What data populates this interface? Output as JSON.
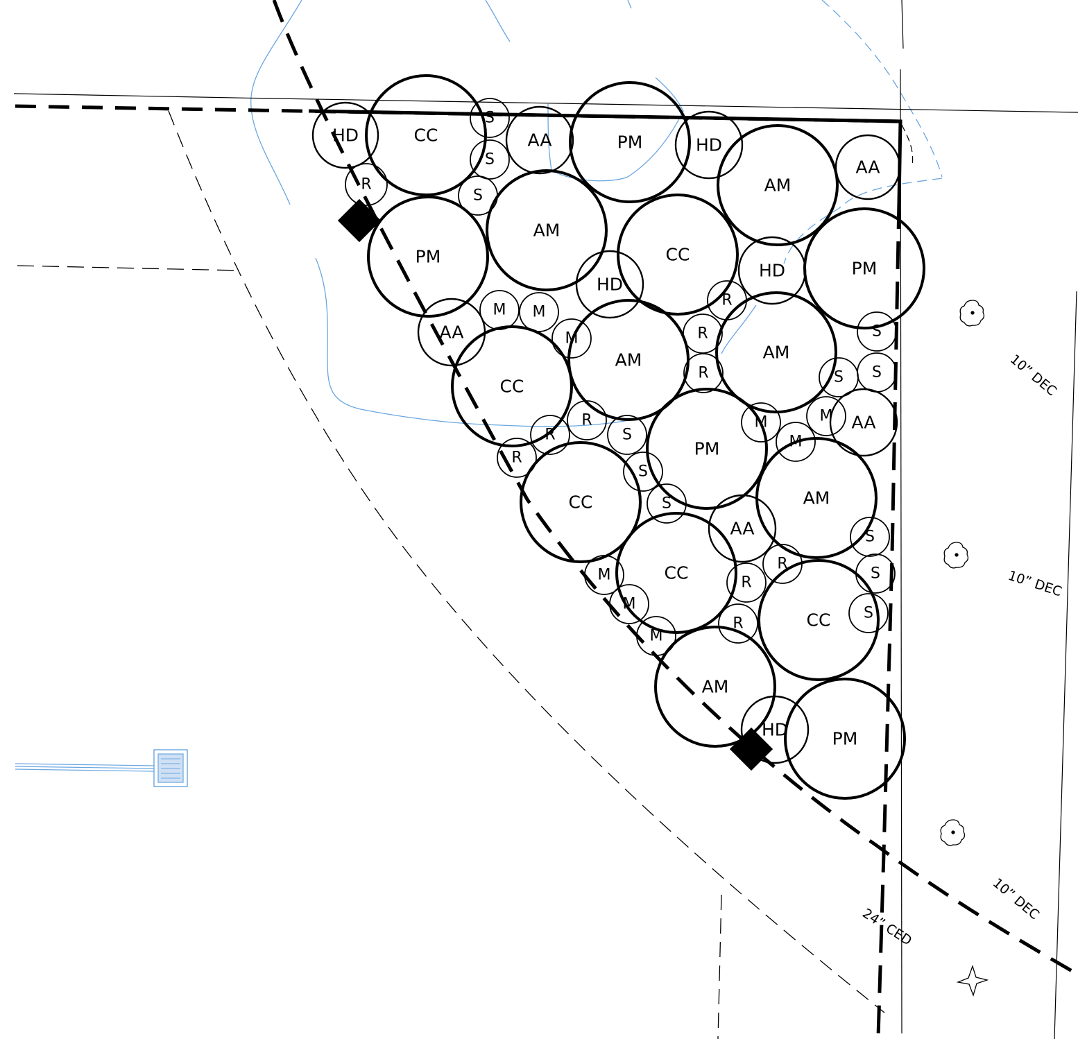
{
  "plan": {
    "plants": [
      {
        "code": "HD"
      },
      {
        "code": "CC"
      },
      {
        "code": "S"
      },
      {
        "code": "AA"
      },
      {
        "code": "PM"
      },
      {
        "code": "HD"
      },
      {
        "code": "AM"
      },
      {
        "code": "AA"
      },
      {
        "code": "R"
      },
      {
        "code": "S"
      },
      {
        "code": "S"
      },
      {
        "code": "PM"
      },
      {
        "code": "AM"
      },
      {
        "code": "CC"
      },
      {
        "code": "HD"
      },
      {
        "code": "PM"
      },
      {
        "code": "HD"
      },
      {
        "code": "AA"
      },
      {
        "code": "M"
      },
      {
        "code": "M"
      },
      {
        "code": "M"
      },
      {
        "code": "AM"
      },
      {
        "code": "R"
      },
      {
        "code": "R"
      },
      {
        "code": "R"
      },
      {
        "code": "AM"
      },
      {
        "code": "S"
      },
      {
        "code": "S"
      },
      {
        "code": "S"
      },
      {
        "code": "CC"
      },
      {
        "code": "R"
      },
      {
        "code": "R"
      },
      {
        "code": "R"
      },
      {
        "code": "S"
      },
      {
        "code": "PM"
      },
      {
        "code": "M"
      },
      {
        "code": "M"
      },
      {
        "code": "M"
      },
      {
        "code": "AA"
      },
      {
        "code": "S"
      },
      {
        "code": "CC"
      },
      {
        "code": "S"
      },
      {
        "code": "AA"
      },
      {
        "code": "AM"
      },
      {
        "code": "S"
      },
      {
        "code": "M"
      },
      {
        "code": "CC"
      },
      {
        "code": "R"
      },
      {
        "code": "R"
      },
      {
        "code": "S"
      },
      {
        "code": "M"
      },
      {
        "code": "M"
      },
      {
        "code": "R"
      },
      {
        "code": "CC"
      },
      {
        "code": "S"
      },
      {
        "code": "AM"
      },
      {
        "code": "HD"
      },
      {
        "code": "PM"
      }
    ],
    "tree_labels": [
      {
        "text": "10” DEC"
      },
      {
        "text": "10” DEC"
      },
      {
        "text": "10” DEC"
      },
      {
        "text": "24” CED"
      }
    ]
  }
}
